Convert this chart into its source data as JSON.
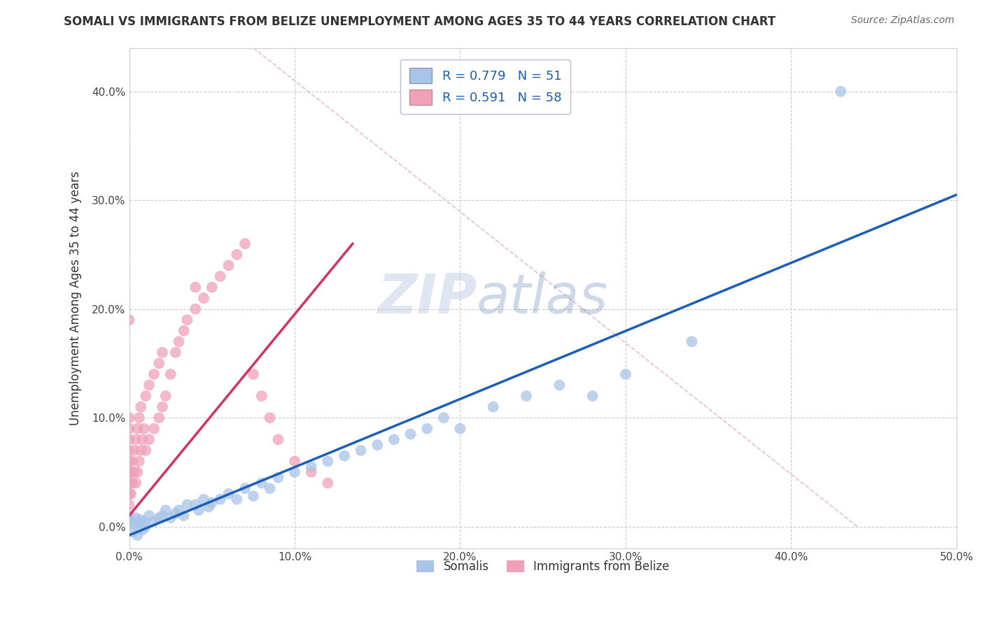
{
  "title": "SOMALI VS IMMIGRANTS FROM BELIZE UNEMPLOYMENT AMONG AGES 35 TO 44 YEARS CORRELATION CHART",
  "source_text": "Source: ZipAtlas.com",
  "ylabel": "Unemployment Among Ages 35 to 44 years",
  "xlim": [
    0.0,
    0.5
  ],
  "ylim": [
    -0.02,
    0.44
  ],
  "x_ticks": [
    0.0,
    0.1,
    0.2,
    0.3,
    0.4,
    0.5
  ],
  "y_ticks": [
    0.0,
    0.1,
    0.2,
    0.3,
    0.4
  ],
  "somali_R": 0.779,
  "somali_N": 51,
  "belize_R": 0.591,
  "belize_N": 58,
  "somali_color": "#a8c4e8",
  "belize_color": "#f0a0b8",
  "somali_line_color": "#1a5eb8",
  "belize_line_color": "#e0306080",
  "belize_line_color_solid": "#d83060",
  "legend_text_color": "#1a5eb8",
  "watermark_color": "#ccd8ee",
  "grid_color": "#cccccc",
  "somali_x": [
    0.001,
    0.002,
    0.003,
    0.004,
    0.005,
    0.006,
    0.007,
    0.008,
    0.009,
    0.01,
    0.012,
    0.015,
    0.018,
    0.02,
    0.022,
    0.025,
    0.028,
    0.03,
    0.033,
    0.035,
    0.04,
    0.042,
    0.045,
    0.048,
    0.05,
    0.055,
    0.06,
    0.065,
    0.07,
    0.075,
    0.08,
    0.085,
    0.09,
    0.1,
    0.11,
    0.12,
    0.13,
    0.14,
    0.15,
    0.16,
    0.17,
    0.18,
    0.19,
    0.2,
    0.22,
    0.24,
    0.26,
    0.28,
    0.3,
    0.34,
    0.43
  ],
  "somali_y": [
    0.005,
    -0.005,
    0.002,
    0.008,
    -0.008,
    0.003,
    0.006,
    -0.003,
    0.004,
    0.0,
    0.01,
    0.005,
    0.008,
    0.01,
    0.015,
    0.008,
    0.012,
    0.015,
    0.01,
    0.02,
    0.02,
    0.015,
    0.025,
    0.018,
    0.022,
    0.025,
    0.03,
    0.025,
    0.035,
    0.028,
    0.04,
    0.035,
    0.045,
    0.05,
    0.055,
    0.06,
    0.065,
    0.07,
    0.075,
    0.08,
    0.085,
    0.09,
    0.1,
    0.09,
    0.11,
    0.12,
    0.13,
    0.12,
    0.14,
    0.17,
    0.4
  ],
  "belize_x": [
    0.0,
    0.0,
    0.0,
    0.0,
    0.0,
    0.0,
    0.0,
    0.0,
    0.0,
    0.0,
    0.001,
    0.001,
    0.002,
    0.002,
    0.003,
    0.003,
    0.004,
    0.004,
    0.005,
    0.005,
    0.006,
    0.006,
    0.007,
    0.007,
    0.008,
    0.009,
    0.01,
    0.01,
    0.012,
    0.012,
    0.015,
    0.015,
    0.018,
    0.018,
    0.02,
    0.02,
    0.022,
    0.025,
    0.028,
    0.03,
    0.033,
    0.035,
    0.04,
    0.04,
    0.045,
    0.05,
    0.055,
    0.06,
    0.065,
    0.07,
    0.075,
    0.08,
    0.085,
    0.09,
    0.1,
    0.11,
    0.12,
    0.0
  ],
  "belize_y": [
    0.02,
    0.03,
    0.04,
    0.05,
    0.06,
    0.07,
    0.08,
    0.09,
    0.1,
    0.01,
    0.03,
    0.05,
    0.04,
    0.06,
    0.05,
    0.07,
    0.04,
    0.08,
    0.05,
    0.09,
    0.06,
    0.1,
    0.07,
    0.11,
    0.08,
    0.09,
    0.07,
    0.12,
    0.08,
    0.13,
    0.09,
    0.14,
    0.1,
    0.15,
    0.11,
    0.16,
    0.12,
    0.14,
    0.16,
    0.17,
    0.18,
    0.19,
    0.2,
    0.22,
    0.21,
    0.22,
    0.23,
    0.24,
    0.25,
    0.26,
    0.14,
    0.12,
    0.1,
    0.08,
    0.06,
    0.05,
    0.04,
    0.19
  ],
  "somali_line_x": [
    0.0,
    0.5
  ],
  "somali_line_y": [
    -0.008,
    0.305
  ],
  "belize_line_x": [
    0.0,
    0.135
  ],
  "belize_line_y": [
    0.01,
    0.26
  ],
  "diag_line_x": [
    0.075,
    0.44
  ],
  "diag_line_y": [
    0.44,
    0.0
  ]
}
